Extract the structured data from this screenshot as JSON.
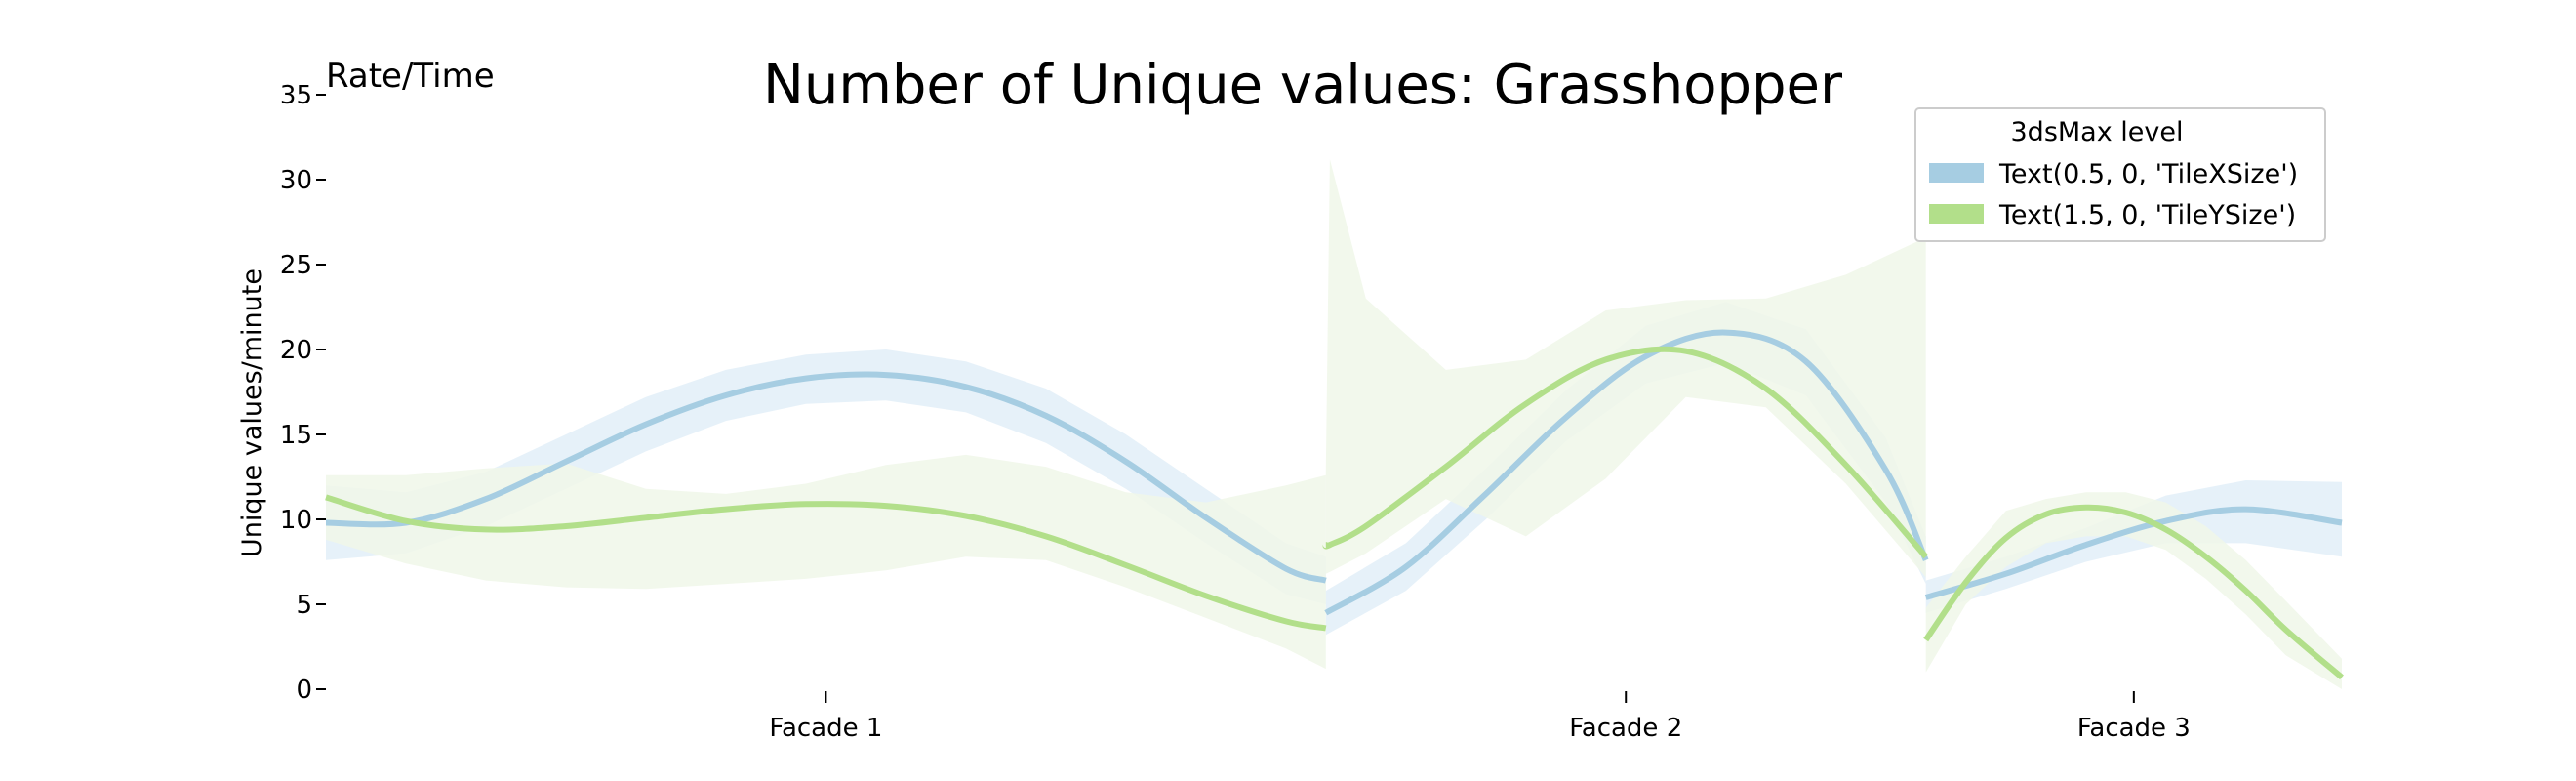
{
  "chart_data": {
    "type": "line",
    "title": "Number of Unique values: Grasshopper",
    "corner_label": "Rate/Time",
    "xlabel": "",
    "ylabel": "Unique values/minute",
    "ylim": [
      0,
      35
    ],
    "yticks": [
      0,
      5,
      10,
      15,
      20,
      25,
      30,
      35
    ],
    "grid": false,
    "categories": [
      "Facade 1",
      "Facade 2",
      "Facade 3"
    ],
    "segments": [
      {
        "category": "Facade 1",
        "x_range": [
          0,
          1.25
        ],
        "tick_at": 0.625
      },
      {
        "category": "Facade 2",
        "x_range": [
          1.25,
          2.0
        ],
        "tick_at": 1.625
      },
      {
        "category": "Facade 3",
        "x_range": [
          2.0,
          2.52
        ],
        "tick_at": 2.26
      }
    ],
    "legend": {
      "title": "3dsMax level",
      "position": "top-right"
    },
    "series": [
      {
        "name": "Text(0.5, 0, 'TileXSize')",
        "color": "#a6cde2",
        "band_color": "#e2eef8",
        "segments": [
          {
            "x": [
              0,
              0.1,
              0.2,
              0.3,
              0.4,
              0.5,
              0.6,
              0.7,
              0.8,
              0.9,
              1.0,
              1.1,
              1.2,
              1.25
            ],
            "y": [
              9.8,
              9.8,
              11.2,
              13.4,
              15.6,
              17.3,
              18.3,
              18.5,
              17.8,
              16.1,
              13.4,
              10.1,
              7.1,
              6.4
            ],
            "lower": [
              7.6,
              8.0,
              9.6,
              11.8,
              14.0,
              15.8,
              16.8,
              17.0,
              16.3,
              14.5,
              11.8,
              8.6,
              5.6,
              5.0
            ],
            "upper": [
              12.0,
              11.6,
              12.8,
              15.0,
              17.2,
              18.8,
              19.7,
              20.0,
              19.3,
              17.7,
              15.0,
              11.8,
              8.6,
              7.8
            ]
          },
          {
            "x": [
              1.25,
              1.35,
              1.45,
              1.55,
              1.65,
              1.75,
              1.85,
              1.95,
              2.0
            ],
            "y": [
              4.5,
              7.2,
              11.5,
              16.0,
              19.6,
              21.0,
              19.3,
              12.9,
              7.6
            ],
            "lower": [
              3.2,
              5.8,
              10.0,
              14.6,
              18.0,
              19.2,
              17.3,
              11.0,
              6.2
            ],
            "upper": [
              5.8,
              8.6,
              13.0,
              17.6,
              21.4,
              22.8,
              21.2,
              14.8,
              9.0
            ]
          },
          {
            "x": [
              2.0,
              2.1,
              2.2,
              2.3,
              2.4,
              2.52
            ],
            "y": [
              5.4,
              6.8,
              8.5,
              9.9,
              10.6,
              9.8
            ],
            "lower": [
              4.5,
              5.9,
              7.5,
              8.6,
              8.6,
              7.8
            ],
            "upper": [
              6.4,
              7.8,
              9.5,
              11.4,
              12.3,
              12.2
            ]
          }
        ]
      },
      {
        "name": "Text(1.5, 0, 'TileYSize')",
        "color": "#b2df8a",
        "band_color": "#f0f7e9",
        "segments": [
          {
            "x": [
              0,
              0.1,
              0.2,
              0.3,
              0.4,
              0.5,
              0.6,
              0.7,
              0.8,
              0.9,
              1.0,
              1.1,
              1.2,
              1.25
            ],
            "y": [
              11.3,
              9.9,
              9.4,
              9.6,
              10.1,
              10.6,
              10.9,
              10.8,
              10.2,
              9.0,
              7.3,
              5.5,
              4.0,
              3.6
            ],
            "lower": [
              8.8,
              7.4,
              6.4,
              6.0,
              5.9,
              6.2,
              6.5,
              7.0,
              7.8,
              7.6,
              6.0,
              4.2,
              2.4,
              1.2
            ],
            "upper": [
              12.6,
              12.6,
              13.0,
              13.3,
              11.8,
              11.5,
              12.1,
              13.2,
              13.8,
              13.1,
              11.6,
              11.0,
              12.0,
              12.6
            ]
          },
          {
            "x": [
              1.25,
              1.255,
              1.3,
              1.4,
              1.5,
              1.6,
              1.7,
              1.8,
              1.9,
              2.0
            ],
            "y": [
              8.5,
              8.5,
              9.6,
              13.1,
              16.8,
              19.4,
              19.9,
              17.7,
              13.2,
              7.8
            ],
            "lower": [
              6.8,
              6.9,
              8.0,
              11.2,
              9.0,
              12.4,
              17.2,
              16.6,
              12.1,
              6.6
            ],
            "upper": [
              12.8,
              31.2,
              23.0,
              18.8,
              19.4,
              22.3,
              22.9,
              23.0,
              24.4,
              26.6
            ]
          },
          {
            "x": [
              2.0,
              2.05,
              2.1,
              2.15,
              2.2,
              2.25,
              2.3,
              2.35,
              2.4,
              2.45,
              2.52
            ],
            "y": [
              2.9,
              6.3,
              8.9,
              10.3,
              10.7,
              10.4,
              9.4,
              7.8,
              5.8,
              3.5,
              0.7
            ],
            "lower": [
              1.0,
              5.0,
              7.2,
              8.6,
              9.0,
              9.0,
              8.2,
              6.5,
              4.4,
              2.0,
              0.0
            ],
            "upper": [
              4.8,
              7.8,
              10.5,
              11.2,
              11.6,
              11.6,
              11.0,
              9.6,
              7.6,
              5.2,
              1.8
            ]
          }
        ]
      }
    ]
  }
}
